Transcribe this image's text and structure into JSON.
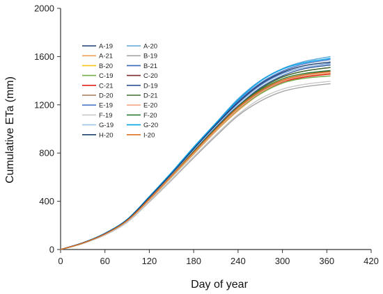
{
  "chart_data": {
    "type": "line",
    "xlabel": "Day of year",
    "ylabel": "Cumulative ETa (mm)",
    "xlim": [
      0,
      420
    ],
    "ylim": [
      0,
      2000
    ],
    "xticks": [
      "0",
      "60",
      "120",
      "180",
      "240",
      "300",
      "360",
      "420"
    ],
    "yticks": [
      "0",
      "400",
      "800",
      "1200",
      "1600",
      "2000"
    ],
    "grid": false,
    "legend_position": "upper-left",
    "x": [
      0,
      30,
      60,
      90,
      120,
      150,
      180,
      210,
      240,
      270,
      300,
      330,
      365
    ],
    "series": [
      {
        "name": "A-19",
        "color": "#1f3b73",
        "values": [
          0,
          55,
          130,
          240,
          420,
          610,
          800,
          990,
          1160,
          1300,
          1400,
          1450,
          1480
        ]
      },
      {
        "name": "A-20",
        "color": "#5aa7d8",
        "values": [
          0,
          55,
          135,
          250,
          440,
          640,
          850,
          1050,
          1250,
          1400,
          1500,
          1560,
          1600
        ]
      },
      {
        "name": "A-21",
        "color": "#f2a15a",
        "values": [
          0,
          50,
          125,
          235,
          410,
          600,
          790,
          980,
          1150,
          1290,
          1380,
          1430,
          1460
        ]
      },
      {
        "name": "B-19",
        "color": "#a6a6a6",
        "values": [
          0,
          50,
          120,
          225,
          395,
          575,
          760,
          940,
          1110,
          1230,
          1310,
          1350,
          1375
        ]
      },
      {
        "name": "B-20",
        "color": "#f5c518",
        "values": [
          0,
          52,
          127,
          238,
          415,
          605,
          800,
          990,
          1170,
          1310,
          1400,
          1440,
          1460
        ]
      },
      {
        "name": "B-21",
        "color": "#3a64b8",
        "values": [
          0,
          55,
          132,
          245,
          430,
          625,
          830,
          1030,
          1210,
          1360,
          1460,
          1510,
          1545
        ]
      },
      {
        "name": "C-19",
        "color": "#70ad47",
        "values": [
          0,
          52,
          126,
          236,
          412,
          600,
          795,
          985,
          1160,
          1290,
          1380,
          1420,
          1440
        ]
      },
      {
        "name": "C-20",
        "color": "#7a2a2a",
        "values": [
          0,
          54,
          131,
          243,
          425,
          620,
          820,
          1015,
          1190,
          1330,
          1430,
          1480,
          1510
        ]
      },
      {
        "name": "C-21",
        "color": "#e02020",
        "values": [
          0,
          53,
          128,
          240,
          418,
          610,
          805,
          995,
          1170,
          1300,
          1390,
          1430,
          1455
        ]
      },
      {
        "name": "D-19",
        "color": "#2e5597",
        "values": [
          0,
          54,
          130,
          242,
          423,
          618,
          815,
          1010,
          1190,
          1340,
          1440,
          1500,
          1530
        ]
      },
      {
        "name": "D-20",
        "color": "#a0785a",
        "values": [
          0,
          53,
          128,
          239,
          417,
          608,
          803,
          995,
          1175,
          1310,
          1400,
          1440,
          1465
        ]
      },
      {
        "name": "D-21",
        "color": "#3b6e2a",
        "values": [
          0,
          54,
          130,
          242,
          422,
          615,
          812,
          1005,
          1185,
          1330,
          1430,
          1480,
          1510
        ]
      },
      {
        "name": "E-19",
        "color": "#4a78c8",
        "values": [
          0,
          55,
          133,
          248,
          435,
          632,
          840,
          1040,
          1230,
          1380,
          1480,
          1540,
          1575
        ]
      },
      {
        "name": "E-20",
        "color": "#f4a582",
        "values": [
          0,
          52,
          127,
          237,
          413,
          603,
          798,
          988,
          1165,
          1300,
          1395,
          1440,
          1465
        ]
      },
      {
        "name": "F-19",
        "color": "#c8c8c8",
        "values": [
          0,
          50,
          122,
          228,
          400,
          582,
          770,
          952,
          1120,
          1250,
          1330,
          1370,
          1395
        ]
      },
      {
        "name": "F-20",
        "color": "#2e7d32",
        "values": [
          0,
          53,
          129,
          240,
          420,
          612,
          808,
          1000,
          1180,
          1320,
          1415,
          1460,
          1485
        ]
      },
      {
        "name": "G-19",
        "color": "#9dc3e6",
        "values": [
          0,
          54,
          131,
          244,
          428,
          623,
          826,
          1022,
          1205,
          1355,
          1455,
          1510,
          1540
        ]
      },
      {
        "name": "G-20",
        "color": "#00a2e8",
        "values": [
          0,
          56,
          134,
          250,
          438,
          638,
          848,
          1048,
          1240,
          1395,
          1495,
          1550,
          1585
        ]
      },
      {
        "name": "H-20",
        "color": "#1c3d6e",
        "values": [
          0,
          55,
          132,
          246,
          432,
          628,
          835,
          1035,
          1220,
          1370,
          1470,
          1525,
          1555
        ]
      },
      {
        "name": "I-20",
        "color": "#e07020",
        "values": [
          0,
          53,
          128,
          240,
          419,
          611,
          806,
          998,
          1178,
          1315,
          1405,
          1450,
          1475
        ]
      }
    ]
  }
}
